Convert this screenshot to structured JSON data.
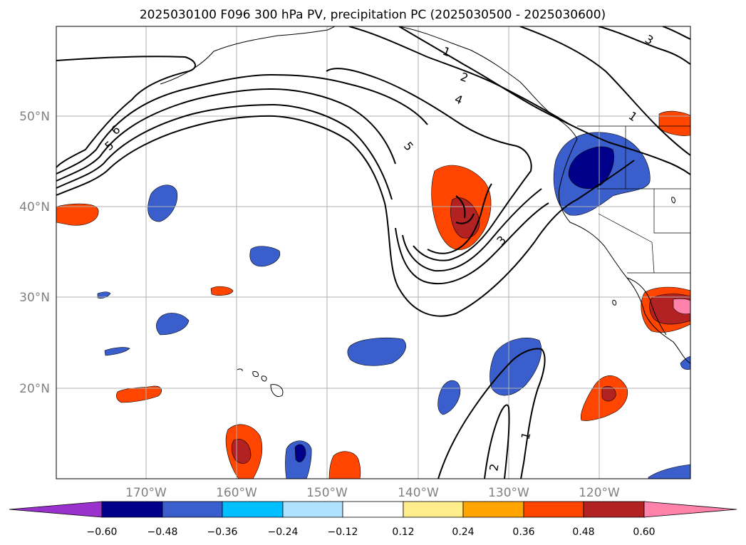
{
  "title": "2025030100 F096 300 hPa PV, precipitation PC (2025030500 - 2025030600)",
  "lat_labels": [
    "50°N",
    "40°N",
    "30°N",
    "20°N"
  ],
  "lon_labels": [
    "170°W",
    "160°W",
    "150°W",
    "140°W",
    "130°W",
    "120°W"
  ],
  "colorbar": {
    "tick_labels": [
      "−0.60",
      "−0.48",
      "−0.36",
      "−0.24",
      "−0.12",
      "0.12",
      "0.24",
      "0.36",
      "0.48",
      "0.60"
    ],
    "colors": [
      "#9932cc",
      "#00008b",
      "#3a5fcd",
      "#00bfff",
      "#b0e2ff",
      "#ffffff",
      "#ffec8b",
      "#ffa500",
      "#ff4500",
      "#b22222",
      "#ff82ab"
    ]
  },
  "contour_labels": [
    "1",
    "2",
    "4",
    "5",
    "6",
    "5",
    "3",
    "3",
    "1",
    "1",
    "2"
  ],
  "colors": {
    "pv_line": "#000000",
    "grid": "#b0b0b0",
    "axis_text": "#808080"
  }
}
